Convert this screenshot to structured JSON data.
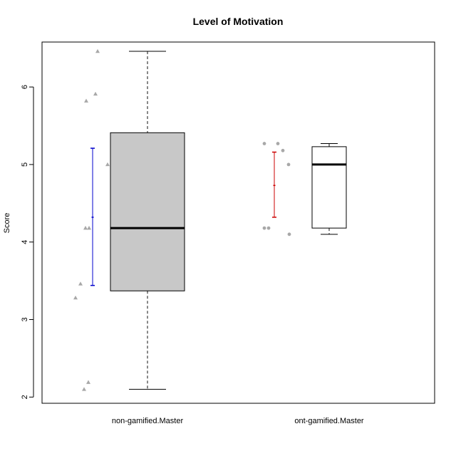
{
  "chart_data": {
    "type": "box",
    "title": "Level of Motivation",
    "xlabel": "",
    "ylabel": "Score",
    "ylim": [
      1.92,
      6.58
    ],
    "yticks": [
      2,
      3,
      4,
      5,
      6
    ],
    "categories": [
      "non-gamified.Master",
      "ont-gamified.Master"
    ],
    "boxes": [
      {
        "name": "non-gamified.Master",
        "fill": "#c8c8c8",
        "whisker_low": 2.1,
        "q1": 3.37,
        "median": 4.18,
        "q3": 5.41,
        "whisker_high": 6.46,
        "mean": 4.32,
        "sd_low": 3.44,
        "sd_high": 5.21,
        "sd_color": "#0000cc",
        "point_marker": "triangle",
        "points": [
          2.1,
          2.19,
          3.28,
          3.46,
          4.18,
          4.18,
          5.0,
          5.82,
          5.91,
          6.46
        ]
      },
      {
        "name": "ont-gamified.Master",
        "fill": "#ffffff",
        "whisker_low": 4.1,
        "q1": 4.18,
        "median": 5.0,
        "q3": 5.23,
        "whisker_high": 5.27,
        "mean": 4.73,
        "sd_low": 4.32,
        "sd_high": 5.16,
        "sd_color": "#cc0000",
        "point_marker": "circle",
        "points": [
          4.18,
          4.18,
          5.27,
          5.27,
          5.18,
          5.0,
          4.1
        ]
      }
    ],
    "point_color": "#a8a8a8",
    "grid": false
  }
}
